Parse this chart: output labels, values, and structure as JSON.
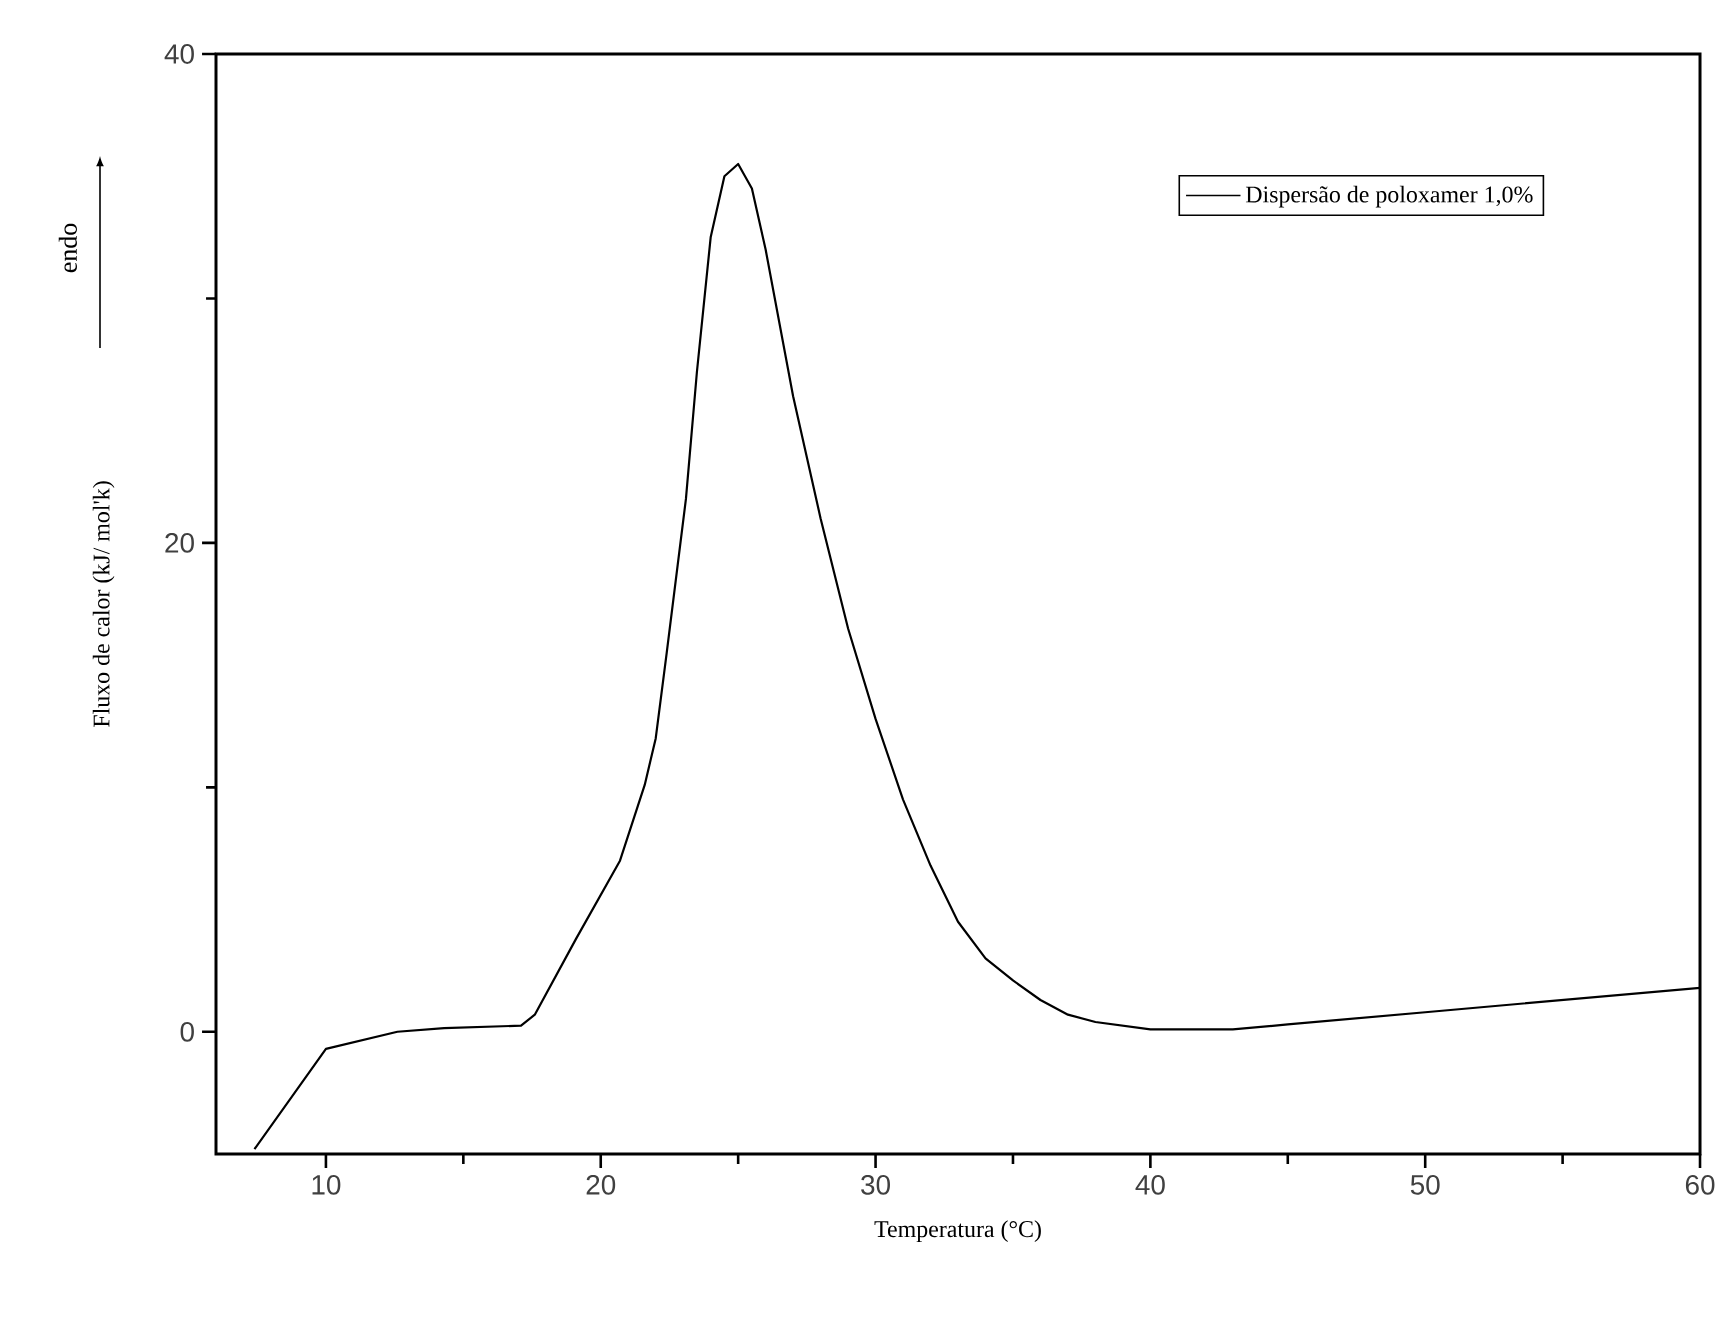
{
  "chart_data": {
    "type": "line",
    "xlabel": "Temperatura (°C)",
    "ylabel": "Fluxo de calor (kJ/ mol'k)",
    "annotations": [
      "endo"
    ],
    "xlim": [
      6,
      60
    ],
    "ylim": [
      -5,
      40
    ],
    "xticks": [
      10,
      20,
      30,
      40,
      50,
      60
    ],
    "yticks": [
      0,
      20,
      40
    ],
    "legend": "top right",
    "series": [
      {
        "name": "Dispersão de poloxamer 1,0%",
        "color": "#000000",
        "x": [
          7.4,
          10,
          12.6,
          14.3,
          17.1,
          17.6,
          19.1,
          20.7,
          21.6,
          22,
          22.4,
          22.8,
          23.1,
          23.5,
          24,
          24.5,
          25,
          25.5,
          26,
          27,
          28,
          29,
          30,
          31,
          32,
          33,
          34,
          35,
          36,
          37,
          38,
          40,
          43,
          45,
          50,
          55,
          60
        ],
        "values": [
          -4.8,
          -0.7,
          0,
          0.15,
          0.25,
          0.7,
          3.8,
          7,
          10.1,
          12,
          15.5,
          19.1,
          21.8,
          27,
          32.5,
          35,
          35.5,
          34.5,
          32,
          26,
          21,
          16.5,
          12.8,
          9.5,
          6.8,
          4.5,
          3,
          2.1,
          1.3,
          0.7,
          0.4,
          0.1,
          0.1,
          0.3,
          0.8,
          1.3,
          1.8
        ]
      }
    ]
  }
}
